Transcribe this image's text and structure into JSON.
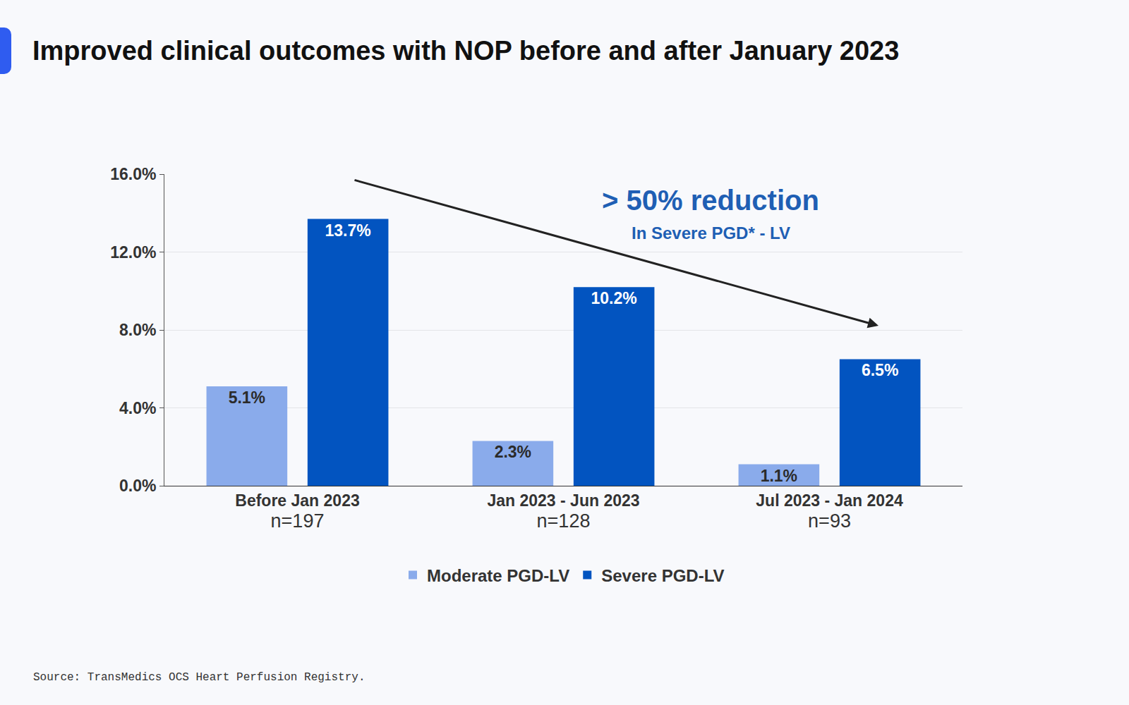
{
  "chart_data": {
    "type": "bar",
    "title": "Improved clinical outcomes with NOP before and after January 2023",
    "categories": [
      "Before Jan 2023",
      "Jan 2023 - Jun 2023",
      "Jul 2023 - Jan 2024"
    ],
    "sample_sizes": [
      "n=197",
      "n=128",
      "n=93"
    ],
    "series": [
      {
        "name": "Moderate PGD-LV",
        "color": "#8aabeb",
        "values": [
          5.1,
          2.3,
          1.1
        ],
        "value_labels": [
          "5.1%",
          "2.3%",
          "1.1%"
        ]
      },
      {
        "name": "Severe PGD-LV",
        "color": "#0254c0",
        "values": [
          13.7,
          10.2,
          6.5
        ],
        "value_labels": [
          "13.7%",
          "10.2%",
          "6.5%"
        ]
      }
    ],
    "ylim": [
      0,
      16
    ],
    "yticks": [
      {
        "value": 0,
        "label": "0.0%"
      },
      {
        "value": 4,
        "label": "4.0%"
      },
      {
        "value": 8,
        "label": "8.0%"
      },
      {
        "value": 12,
        "label": "12.0%"
      },
      {
        "value": 16,
        "label": "16.0%"
      }
    ],
    "grid": true,
    "data_labels": true,
    "legend": "bottom",
    "annotations": [
      {
        "text": "> 50% reduction"
      },
      {
        "text": "In Severe PGD* - LV"
      }
    ],
    "source": "Source: TransMedics OCS Heart Perfusion Registry."
  }
}
